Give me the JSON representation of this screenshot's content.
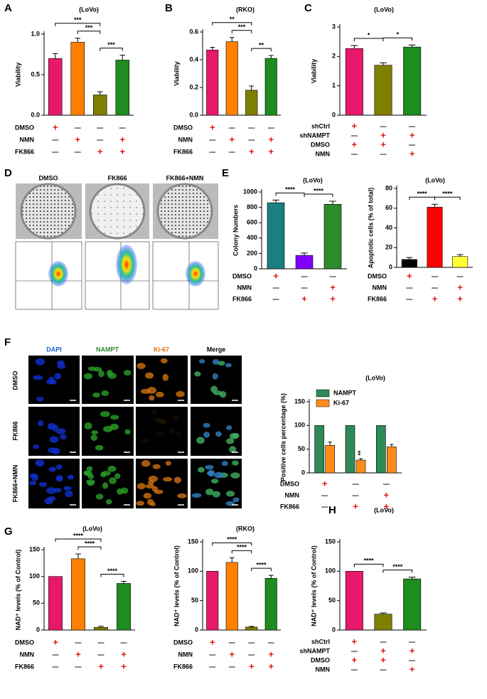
{
  "panel_labels": [
    "A",
    "B",
    "C",
    "D",
    "E",
    "F",
    "G",
    "H"
  ],
  "images": {
    "D": {
      "conditions": [
        "DMSO",
        "FK866",
        "FK866+NMN"
      ]
    },
    "F": {
      "stains": [
        "DAPI",
        "NAMPT",
        "Ki-67",
        "Merge"
      ],
      "conditions": [
        "DMSO",
        "FK866",
        "FK866+NMN"
      ]
    }
  },
  "chart_data": [
    {
      "type": "bar",
      "title": "(LoVo)",
      "ylabel": "Viability",
      "values": [
        0.7,
        0.9,
        0.25,
        0.68
      ],
      "errors": [
        0.06,
        0.05,
        0.04,
        0.06
      ],
      "colors": [
        "#e8186a",
        "#ff8000",
        "#808000",
        "#1e8c1e"
      ],
      "ylim": [
        0,
        1.0
      ],
      "yticks": [
        {
          "value": 0,
          "label": "0.0"
        },
        0.5,
        {
          "value": 1,
          "label": "1.0"
        }
      ],
      "comparisons": [
        {
          "from": 1,
          "to": 2,
          "label": "***"
        },
        {
          "from": 2,
          "to": 3,
          "label": "***"
        },
        {
          "from": 0,
          "to": 2,
          "label": "***"
        }
      ],
      "table": [
        {
          "name": "DMSO",
          "signs": [
            "+",
            "—",
            "—",
            "—"
          ]
        },
        {
          "name": "NMN",
          "signs": [
            "—",
            "+",
            "—",
            "+"
          ]
        },
        {
          "name": "FK866",
          "signs": [
            "—",
            "—",
            "+",
            "+"
          ]
        }
      ]
    },
    {
      "type": "bar",
      "title": "(RKO)",
      "ylabel": "Viability",
      "values": [
        0.47,
        0.53,
        0.18,
        0.41
      ],
      "errors": [
        0.02,
        0.03,
        0.03,
        0.02
      ],
      "colors": [
        "#e8186a",
        "#ff8000",
        "#808000",
        "#1e8c1e"
      ],
      "ylim": [
        0,
        0.6
      ],
      "yticks": [
        {
          "value": 0,
          "label": "0.0"
        },
        0.2,
        0.4,
        0.6
      ],
      "comparisons": [
        {
          "from": 1,
          "to": 2,
          "label": "***"
        },
        {
          "from": 2,
          "to": 3,
          "label": "**"
        },
        {
          "from": 0,
          "to": 2,
          "label": "**"
        }
      ],
      "table": [
        {
          "name": "DMSO",
          "signs": [
            "+",
            "—",
            "—",
            "—"
          ]
        },
        {
          "name": "NMN",
          "signs": [
            "—",
            "+",
            "—",
            "+"
          ]
        },
        {
          "name": "FK866",
          "signs": [
            "—",
            "—",
            "+",
            "+"
          ]
        }
      ]
    },
    {
      "type": "bar",
      "title": "(LoVo)",
      "ylabel": "Viability",
      "values": [
        2.27,
        1.7,
        2.32
      ],
      "errors": [
        0.1,
        0.08,
        0.07
      ],
      "colors": [
        "#e8186a",
        "#808000",
        "#1e8c1e"
      ],
      "ylim": [
        0,
        3
      ],
      "yticks": [
        0,
        1,
        2,
        3
      ],
      "comparisons": [
        {
          "from": 0,
          "to": 1,
          "label": "*"
        },
        {
          "from": 1,
          "to": 2,
          "label": "*"
        }
      ],
      "table": [
        {
          "name": "shCtrl",
          "signs": [
            "+",
            "—",
            "—"
          ]
        },
        {
          "name": "shNAMPT",
          "signs": [
            "—",
            "+",
            "+"
          ]
        },
        {
          "name": "DMSO",
          "signs": [
            "+",
            "+",
            "—"
          ]
        },
        {
          "name": "NMN",
          "signs": [
            "—",
            "—",
            "+"
          ]
        }
      ]
    },
    {
      "type": "bar",
      "title": "(LoVo)",
      "ylabel": "Colony Numbers",
      "values": [
        860,
        175,
        840
      ],
      "errors": [
        35,
        30,
        40
      ],
      "colors": [
        "#1a7f7f",
        "#8000ff",
        "#2e8b2e"
      ],
      "ylim": [
        0,
        1000
      ],
      "yticks": [
        0,
        200,
        400,
        600,
        800,
        1000
      ],
      "comparisons": [
        {
          "from": 0,
          "to": 1,
          "label": "****"
        },
        {
          "from": 1,
          "to": 2,
          "label": "****"
        }
      ],
      "table": [
        {
          "name": "DMSO",
          "signs": [
            "+",
            "—",
            "—"
          ]
        },
        {
          "name": "NMN",
          "signs": [
            "—",
            "—",
            "+"
          ]
        },
        {
          "name": "FK866",
          "signs": [
            "—",
            "+",
            "+"
          ]
        }
      ]
    },
    {
      "type": "bar",
      "title": "(LoVo)",
      "ylabel": "Apoptotic cells (% of total)",
      "values": [
        8,
        61,
        11
      ],
      "errors": [
        2,
        3,
        2
      ],
      "colors": [
        "#000000",
        "#ff0000",
        "#ffff33"
      ],
      "ylim": [
        0,
        80
      ],
      "yticks": [
        0,
        20,
        40,
        60,
        80
      ],
      "comparisons": [
        {
          "from": 0,
          "to": 1,
          "label": "****"
        },
        {
          "from": 1,
          "to": 2,
          "label": "****"
        }
      ],
      "table": [
        {
          "name": "DMSO",
          "signs": [
            "+",
            "—",
            "—"
          ]
        },
        {
          "name": "NMN",
          "signs": [
            "—",
            "—",
            "+"
          ]
        },
        {
          "name": "FK866",
          "signs": [
            "—",
            "+",
            "+"
          ]
        }
      ]
    },
    {
      "type": "bar",
      "title": "(LoVo)",
      "ylabel": "Positive cells percentage (%)",
      "series": [
        {
          "name": "NAMPT",
          "color": "#2e8b57",
          "values": [
            100,
            100,
            100
          ],
          "errors": [
            0,
            0,
            0
          ]
        },
        {
          "name": "Ki-67",
          "color": "#ff8c1a",
          "values": [
            58,
            27,
            55
          ],
          "errors": [
            7,
            3,
            5
          ]
        }
      ],
      "ylim": [
        0,
        150
      ],
      "yticks": [
        0,
        50,
        100,
        150
      ],
      "legend": "upper left",
      "point_labels": [
        {
          "series": 1,
          "index": 1,
          "label": "**"
        }
      ],
      "table": [
        {
          "name": "DMSO",
          "signs": [
            "+",
            "—",
            "—"
          ]
        },
        {
          "name": "NMN",
          "signs": [
            "—",
            "—",
            "+"
          ]
        },
        {
          "name": "FK866",
          "signs": [
            "—",
            "+",
            "+"
          ]
        }
      ]
    },
    {
      "type": "bar",
      "title": "(LoVo)",
      "ylabel": "NAD⁺ levels (% of Control)",
      "values": [
        100,
        133,
        5,
        87
      ],
      "errors": [
        0,
        9,
        2,
        4
      ],
      "colors": [
        "#e8186a",
        "#ff8000",
        "#808000",
        "#1e8c1e"
      ],
      "ylim": [
        0,
        150
      ],
      "yticks": [
        0,
        50,
        100,
        150
      ],
      "comparisons": [
        {
          "from": 2,
          "to": 3,
          "label": "****"
        },
        {
          "from": 1,
          "to": 2,
          "label": "****"
        },
        {
          "from": 0,
          "to": 2,
          "label": "****"
        }
      ],
      "table": [
        {
          "name": "DMSO",
          "signs": [
            "+",
            "—",
            "—",
            "—"
          ]
        },
        {
          "name": "NMN",
          "signs": [
            "—",
            "+",
            "—",
            "+"
          ]
        },
        {
          "name": "FK866",
          "signs": [
            "—",
            "—",
            "+",
            "+"
          ]
        }
      ]
    },
    {
      "type": "bar",
      "title": "(RKO)",
      "ylabel": "NAD⁺ levels (% of Control)",
      "values": [
        100,
        115,
        5,
        88
      ],
      "errors": [
        0,
        8,
        1,
        5
      ],
      "colors": [
        "#e8186a",
        "#ff8000",
        "#808000",
        "#1e8c1e"
      ],
      "ylim": [
        0,
        150
      ],
      "yticks": [
        0,
        50,
        100,
        150
      ],
      "comparisons": [
        {
          "from": 2,
          "to": 3,
          "label": "****"
        },
        {
          "from": 1,
          "to": 2,
          "label": "****"
        },
        {
          "from": 0,
          "to": 2,
          "label": "****"
        }
      ],
      "table": [
        {
          "name": "DMSO",
          "signs": [
            "+",
            "—",
            "—",
            "—"
          ]
        },
        {
          "name": "NMN",
          "signs": [
            "—",
            "+",
            "—",
            "+"
          ]
        },
        {
          "name": "FK866",
          "signs": [
            "—",
            "—",
            "+",
            "+"
          ]
        }
      ]
    },
    {
      "type": "bar",
      "title": "(LoVo)",
      "ylabel": "NAD⁺ levels (% of Control)",
      "values": [
        100,
        27,
        87
      ],
      "errors": [
        0,
        2,
        3
      ],
      "colors": [
        "#e8186a",
        "#808000",
        "#1e8c1e"
      ],
      "ylim": [
        0,
        150
      ],
      "yticks": [
        0,
        50,
        100,
        150
      ],
      "comparisons": [
        {
          "from": 0,
          "to": 1,
          "label": "****"
        },
        {
          "from": 1,
          "to": 2,
          "label": "****"
        }
      ],
      "table": [
        {
          "name": "shCtrl",
          "signs": [
            "+",
            "—",
            "—"
          ]
        },
        {
          "name": "shNAMPT",
          "signs": [
            "—",
            "+",
            "+"
          ]
        },
        {
          "name": "DMSO",
          "signs": [
            "+",
            "+",
            "—"
          ]
        },
        {
          "name": "NMN",
          "signs": [
            "—",
            "—",
            "+"
          ]
        }
      ]
    }
  ]
}
